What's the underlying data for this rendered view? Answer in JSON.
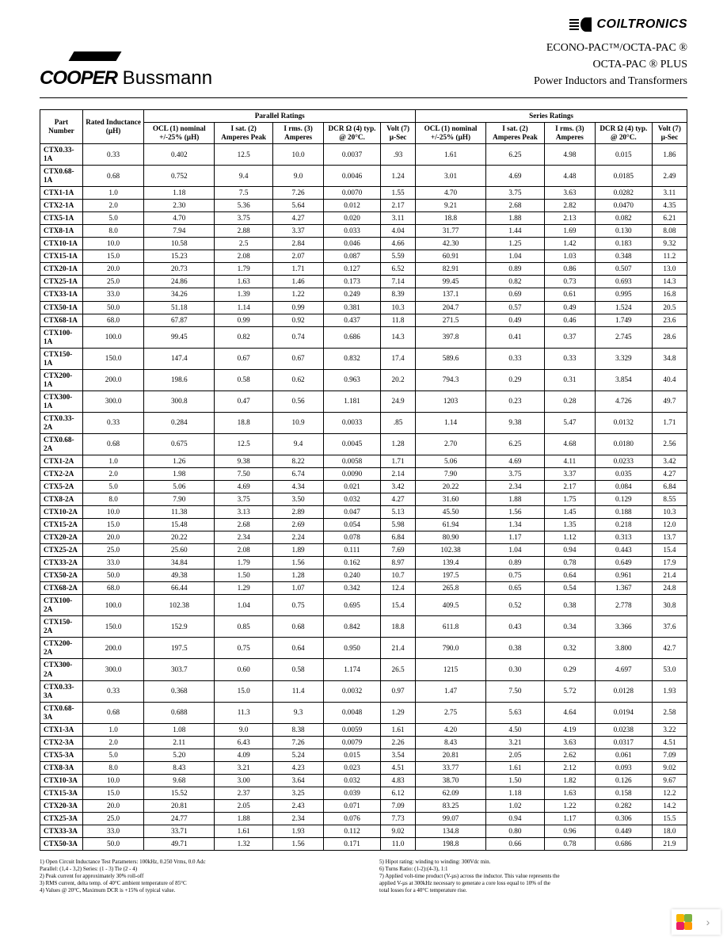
{
  "logos": {
    "cooper": "COOPER",
    "bussmann": " Bussmann",
    "coiltronics": "COILTRONICS"
  },
  "product_lines": [
    "ECONO-PAC™/OCTA-PAC ®",
    "OCTA-PAC ® PLUS",
    "Power Inductors and Transformers"
  ],
  "table": {
    "group_headers": {
      "parallel": "Parallel Ratings",
      "series": "Series Ratings"
    },
    "columns": [
      "Part Number",
      "Rated Inductance (µH)",
      "OCL (1) nominal +/-25% (µH)",
      "I sat. (2) Amperes Peak",
      "I rms. (3) Amperes",
      "DCR Ω (4) typ. @ 20°C.",
      "Volt (7) µ-Sec",
      "OCL (1) nominal +/-25% (µH)",
      "I sat. (2) Amperes Peak",
      "I rms. (3) Amperes",
      "DCR Ω (4) typ. @ 20°C.",
      "Volt (7) µ-Sec"
    ],
    "rows": [
      [
        "CTX0.33-1A",
        "0.33",
        "0.402",
        "12.5",
        "10.0",
        "0.0037",
        ".93",
        "1.61",
        "6.25",
        "4.98",
        "0.015",
        "1.86"
      ],
      [
        "CTX0.68-1A",
        "0.68",
        "0.752",
        "9.4",
        "9.0",
        "0.0046",
        "1.24",
        "3.01",
        "4.69",
        "4.48",
        "0.0185",
        "2.49"
      ],
      [
        "CTX1-1A",
        "1.0",
        "1.18",
        "7.5",
        "7.26",
        "0.0070",
        "1.55",
        "4.70",
        "3.75",
        "3.63",
        "0.0282",
        "3.11"
      ],
      [
        "CTX2-1A",
        "2.0",
        "2.30",
        "5.36",
        "5.64",
        "0.012",
        "2.17",
        "9.21",
        "2.68",
        "2.82",
        "0.0470",
        "4.35"
      ],
      [
        "CTX5-1A",
        "5.0",
        "4.70",
        "3.75",
        "4.27",
        "0.020",
        "3.11",
        "18.8",
        "1.88",
        "2.13",
        "0.082",
        "6.21"
      ],
      [
        "CTX8-1A",
        "8.0",
        "7.94",
        "2.88",
        "3.37",
        "0.033",
        "4.04",
        "31.77",
        "1.44",
        "1.69",
        "0.130",
        "8.08"
      ],
      [
        "CTX10-1A",
        "10.0",
        "10.58",
        "2.5",
        "2.84",
        "0.046",
        "4.66",
        "42.30",
        "1.25",
        "1.42",
        "0.183",
        "9.32"
      ],
      [
        "CTX15-1A",
        "15.0",
        "15.23",
        "2.08",
        "2.07",
        "0.087",
        "5.59",
        "60.91",
        "1.04",
        "1.03",
        "0.348",
        "11.2"
      ],
      [
        "CTX20-1A",
        "20.0",
        "20.73",
        "1.79",
        "1.71",
        "0.127",
        "6.52",
        "82.91",
        "0.89",
        "0.86",
        "0.507",
        "13.0"
      ],
      [
        "CTX25-1A",
        "25.0",
        "24.86",
        "1.63",
        "1.46",
        "0.173",
        "7.14",
        "99.45",
        "0.82",
        "0.73",
        "0.693",
        "14.3"
      ],
      [
        "CTX33-1A",
        "33.0",
        "34.26",
        "1.39",
        "1.22",
        "0.249",
        "8.39",
        "137.1",
        "0.69",
        "0.61",
        "0.995",
        "16.8"
      ],
      [
        "CTX50-1A",
        "50.0",
        "51.18",
        "1.14",
        "0.99",
        "0.381",
        "10.3",
        "204.7",
        "0.57",
        "0.49",
        "1.524",
        "20.5"
      ],
      [
        "CTX68-1A",
        "68.0",
        "67.87",
        "0.99",
        "0.92",
        "0.437",
        "11.8",
        "271.5",
        "0.49",
        "0.46",
        "1.749",
        "23.6"
      ],
      [
        "CTX100-1A",
        "100.0",
        "99.45",
        "0.82",
        "0.74",
        "0.686",
        "14.3",
        "397.8",
        "0.41",
        "0.37",
        "2.745",
        "28.6"
      ],
      [
        "CTX150-1A",
        "150.0",
        "147.4",
        "0.67",
        "0.67",
        "0.832",
        "17.4",
        "589.6",
        "0.33",
        "0.33",
        "3.329",
        "34.8"
      ],
      [
        "CTX200-1A",
        "200.0",
        "198.6",
        "0.58",
        "0.62",
        "0.963",
        "20.2",
        "794.3",
        "0.29",
        "0.31",
        "3.854",
        "40.4"
      ],
      [
        "CTX300-1A",
        "300.0",
        "300.8",
        "0.47",
        "0.56",
        "1.181",
        "24.9",
        "1203",
        "0.23",
        "0.28",
        "4.726",
        "49.7"
      ],
      [
        "CTX0.33-2A",
        "0.33",
        "0.284",
        "18.8",
        "10.9",
        "0.0033",
        ".85",
        "1.14",
        "9.38",
        "5.47",
        "0.0132",
        "1.71"
      ],
      [
        "CTX0.68-2A",
        "0.68",
        "0.675",
        "12.5",
        "9.4",
        "0.0045",
        "1.28",
        "2.70",
        "6.25",
        "4.68",
        "0.0180",
        "2.56"
      ],
      [
        "CTX1-2A",
        "1.0",
        "1.26",
        "9.38",
        "8.22",
        "0.0058",
        "1.71",
        "5.06",
        "4.69",
        "4.11",
        "0.0233",
        "3.42"
      ],
      [
        "CTX2-2A",
        "2.0",
        "1.98",
        "7.50",
        "6.74",
        "0.0090",
        "2.14",
        "7.90",
        "3.75",
        "3.37",
        "0.035",
        "4.27"
      ],
      [
        "CTX5-2A",
        "5.0",
        "5.06",
        "4.69",
        "4.34",
        "0.021",
        "3.42",
        "20.22",
        "2.34",
        "2.17",
        "0.084",
        "6.84"
      ],
      [
        "CTX8-2A",
        "8.0",
        "7.90",
        "3.75",
        "3.50",
        "0.032",
        "4.27",
        "31.60",
        "1.88",
        "1.75",
        "0.129",
        "8.55"
      ],
      [
        "CTX10-2A",
        "10.0",
        "11.38",
        "3.13",
        "2.89",
        "0.047",
        "5.13",
        "45.50",
        "1.56",
        "1.45",
        "0.188",
        "10.3"
      ],
      [
        "CTX15-2A",
        "15.0",
        "15.48",
        "2.68",
        "2.69",
        "0.054",
        "5.98",
        "61.94",
        "1.34",
        "1.35",
        "0.218",
        "12.0"
      ],
      [
        "CTX20-2A",
        "20.0",
        "20.22",
        "2.34",
        "2.24",
        "0.078",
        "6.84",
        "80.90",
        "1.17",
        "1.12",
        "0.313",
        "13.7"
      ],
      [
        "CTX25-2A",
        "25.0",
        "25.60",
        "2.08",
        "1.89",
        "0.111",
        "7.69",
        "102.38",
        "1.04",
        "0.94",
        "0.443",
        "15.4"
      ],
      [
        "CTX33-2A",
        "33.0",
        "34.84",
        "1.79",
        "1.56",
        "0.162",
        "8.97",
        "139.4",
        "0.89",
        "0.78",
        "0.649",
        "17.9"
      ],
      [
        "CTX50-2A",
        "50.0",
        "49.38",
        "1.50",
        "1.28",
        "0.240",
        "10.7",
        "197.5",
        "0.75",
        "0.64",
        "0.961",
        "21.4"
      ],
      [
        "CTX68-2A",
        "68.0",
        "66.44",
        "1.29",
        "1.07",
        "0.342",
        "12.4",
        "265.8",
        "0.65",
        "0.54",
        "1.367",
        "24.8"
      ],
      [
        "CTX100-2A",
        "100.0",
        "102.38",
        "1.04",
        "0.75",
        "0.695",
        "15.4",
        "409.5",
        "0.52",
        "0.38",
        "2.778",
        "30.8"
      ],
      [
        "CTX150-2A",
        "150.0",
        "152.9",
        "0.85",
        "0.68",
        "0.842",
        "18.8",
        "611.8",
        "0.43",
        "0.34",
        "3.366",
        "37.6"
      ],
      [
        "CTX200-2A",
        "200.0",
        "197.5",
        "0.75",
        "0.64",
        "0.950",
        "21.4",
        "790.0",
        "0.38",
        "0.32",
        "3.800",
        "42.7"
      ],
      [
        "CTX300-2A",
        "300.0",
        "303.7",
        "0.60",
        "0.58",
        "1.174",
        "26.5",
        "1215",
        "0.30",
        "0.29",
        "4.697",
        "53.0"
      ],
      [
        "CTX0.33-3A",
        "0.33",
        "0.368",
        "15.0",
        "11.4",
        "0.0032",
        "0.97",
        "1.47",
        "7.50",
        "5.72",
        "0.0128",
        "1.93"
      ],
      [
        "CTX0.68-3A",
        "0.68",
        "0.688",
        "11.3",
        "9.3",
        "0.0048",
        "1.29",
        "2.75",
        "5.63",
        "4.64",
        "0.0194",
        "2.58"
      ],
      [
        "CTX1-3A",
        "1.0",
        "1.08",
        "9.0",
        "8.38",
        "0.0059",
        "1.61",
        "4.20",
        "4.50",
        "4.19",
        "0.0238",
        "3.22"
      ],
      [
        "CTX2-3A",
        "2.0",
        "2.11",
        "6.43",
        "7.26",
        "0.0079",
        "2.26",
        "8.43",
        "3.21",
        "3.63",
        "0.0317",
        "4.51"
      ],
      [
        "CTX5-3A",
        "5.0",
        "5.20",
        "4.09",
        "5.24",
        "0.015",
        "3.54",
        "20.81",
        "2.05",
        "2.62",
        "0.061",
        "7.09"
      ],
      [
        "CTX8-3A",
        "8.0",
        "8.43",
        "3.21",
        "4.23",
        "0.023",
        "4.51",
        "33.77",
        "1.61",
        "2.12",
        "0.093",
        "9.02"
      ],
      [
        "CTX10-3A",
        "10.0",
        "9.68",
        "3.00",
        "3.64",
        "0.032",
        "4.83",
        "38.70",
        "1.50",
        "1.82",
        "0.126",
        "9.67"
      ],
      [
        "CTX15-3A",
        "15.0",
        "15.52",
        "2.37",
        "3.25",
        "0.039",
        "6.12",
        "62.09",
        "1.18",
        "1.63",
        "0.158",
        "12.2"
      ],
      [
        "CTX20-3A",
        "20.0",
        "20.81",
        "2.05",
        "2.43",
        "0.071",
        "7.09",
        "83.25",
        "1.02",
        "1.22",
        "0.282",
        "14.2"
      ],
      [
        "CTX25-3A",
        "25.0",
        "24.77",
        "1.88",
        "2.34",
        "0.076",
        "7.73",
        "99.07",
        "0.94",
        "1.17",
        "0.306",
        "15.5"
      ],
      [
        "CTX33-3A",
        "33.0",
        "33.71",
        "1.61",
        "1.93",
        "0.112",
        "9.02",
        "134.8",
        "0.80",
        "0.96",
        "0.449",
        "18.0"
      ],
      [
        "CTX50-3A",
        "50.0",
        "49.71",
        "1.32",
        "1.56",
        "0.171",
        "11.0",
        "198.8",
        "0.66",
        "0.78",
        "0.686",
        "21.9"
      ]
    ]
  },
  "footnotes_left": [
    "1) Open Circuit Inductance Test Parameters: 100kHz, 0.250 Vrms, 0.0 Adc",
    "   Parallel: (1,4 - 3,2) Series: (1 - 3) Tie (2 - 4)",
    "2) Peak current for approximately 30% roll-off",
    "3) RMS current, delta temp. of 40°C ambient temperature of 85°C",
    "4) Values @ 20°C, Maximum DCR is +15% of typical value."
  ],
  "footnotes_right": [
    "5) Hipot rating: winding to winding: 300Vdc min.",
    "6) Turns Ratio: (1-2):(4-3), 1:1",
    "7) Applied volt-time product (V-µs) across the inductor. This value represents the",
    "   applied V-µs at 300kHz necessary to generate a core loss equal to 10% of the",
    "   total losses for a 40°C temperature rise."
  ],
  "nav": {
    "next": "›"
  }
}
